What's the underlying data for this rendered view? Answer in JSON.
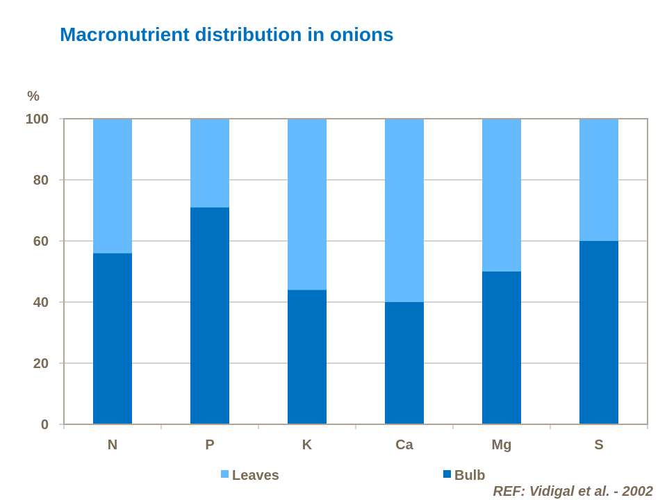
{
  "title": "Macronutrient distribution in onions",
  "reference": "REF: Vidigal et al. -  2002",
  "chart_data": {
    "type": "bar",
    "stacked": true,
    "title": "Macronutrient distribution in onions",
    "xlabel": "",
    "ylabel": "%",
    "ylim": [
      0,
      100
    ],
    "yticks": [
      0,
      20,
      40,
      60,
      80,
      100
    ],
    "categories": [
      "N",
      "P",
      "K",
      "Ca",
      "Mg",
      "S"
    ],
    "series": [
      {
        "name": "Bulb",
        "color": "#0070c0",
        "values": [
          56,
          71,
          44,
          40,
          50,
          60
        ]
      },
      {
        "name": "Leaves",
        "color": "#66bbff",
        "values": [
          44,
          29,
          56,
          60,
          50,
          40
        ]
      }
    ],
    "grid": true,
    "legend": "bottom",
    "legend_order": [
      "Leaves",
      "Bulb"
    ]
  }
}
